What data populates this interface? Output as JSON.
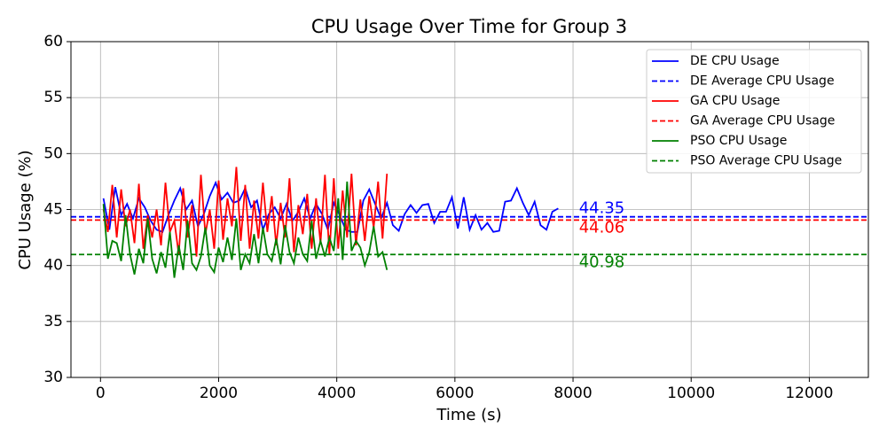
{
  "chart_data": {
    "type": "line",
    "title": "CPU Usage Over Time for Group 3",
    "xlabel": "Time (s)",
    "ylabel": "CPU Usage (%)",
    "xlim": [
      -500,
      13000
    ],
    "ylim": [
      30,
      60
    ],
    "xticks": [
      0,
      2000,
      4000,
      6000,
      8000,
      10000,
      12000
    ],
    "yticks": [
      30,
      35,
      40,
      45,
      50,
      55,
      60
    ],
    "grid": true,
    "legend": "upper right",
    "series": [
      {
        "name": "DE CPU Usage",
        "color": "#0000ff",
        "x": [
          50,
          150,
          250,
          350,
          450,
          550,
          650,
          750,
          850,
          950,
          1050,
          1150,
          1250,
          1350,
          1450,
          1550,
          1650,
          1750,
          1850,
          1950,
          2050,
          2150,
          2250,
          2350,
          2450,
          2550,
          2650,
          2750,
          2850,
          2950,
          3050,
          3150,
          3250,
          3350,
          3450,
          3550,
          3650,
          3750,
          3850,
          3950,
          4050,
          4150,
          4250,
          4350,
          4450,
          4550,
          4650,
          4750,
          4850,
          4950,
          5050,
          5150,
          5250,
          5350,
          5450,
          5550,
          5650,
          5750,
          5850,
          5950,
          6050,
          6150,
          6250,
          6350,
          6450,
          6550,
          6650,
          6750,
          6850,
          6950,
          7050,
          7150,
          7250,
          7350,
          7450,
          7550,
          7650,
          7750
        ],
        "values": [
          46.0,
          43.2,
          47.0,
          44.5,
          45.5,
          44.2,
          46.0,
          45.2,
          44.0,
          43.2,
          43.0,
          44.5,
          45.8,
          46.9,
          45.0,
          45.8,
          43.5,
          44.6,
          46.2,
          47.4,
          45.9,
          46.5,
          45.6,
          45.8,
          46.9,
          45.2,
          45.8,
          43.2,
          44.6,
          45.2,
          44.2,
          45.5,
          44.0,
          44.8,
          46.0,
          44.2,
          45.5,
          44.6,
          43.2,
          45.6,
          44.5,
          43.2,
          43.0,
          43.0,
          45.8,
          46.8,
          45.5,
          44.2,
          45.6,
          43.6,
          43.1,
          44.6,
          45.4,
          44.7,
          45.4,
          45.5,
          43.8,
          44.8,
          44.8,
          46.1,
          43.3,
          46.1,
          43.2,
          44.5,
          43.2,
          43.8,
          43.0,
          43.1,
          45.7,
          45.8,
          46.9,
          45.6,
          44.5,
          45.7,
          43.6,
          43.2,
          44.8,
          45.1
        ]
      },
      {
        "name": "DE Average CPU Usage",
        "color": "#0000ff",
        "dash": true,
        "value": 44.35
      },
      {
        "name": "GA CPU Usage",
        "color": "#ff0000",
        "x": [
          50,
          125,
          200,
          275,
          350,
          425,
          500,
          575,
          650,
          725,
          800,
          875,
          950,
          1025,
          1100,
          1175,
          1250,
          1325,
          1400,
          1475,
          1550,
          1625,
          1700,
          1775,
          1850,
          1925,
          2000,
          2075,
          2150,
          2225,
          2300,
          2375,
          2450,
          2525,
          2600,
          2675,
          2750,
          2825,
          2900,
          2975,
          3050,
          3125,
          3200,
          3275,
          3350,
          3425,
          3500,
          3575,
          3650,
          3725,
          3800,
          3875,
          3950,
          4025,
          4100,
          4175,
          4250,
          4325,
          4400,
          4475,
          4550,
          4625,
          4700,
          4775,
          4850
        ],
        "values": [
          45,
          43,
          47.2,
          42.5,
          46.8,
          43.5,
          45,
          42,
          47.3,
          41.5,
          44.5,
          42.5,
          45,
          41.8,
          47.4,
          43,
          44,
          41,
          46.9,
          42.5,
          45.4,
          40.8,
          48.1,
          42.8,
          45,
          41.5,
          47.6,
          42.3,
          46,
          43.5,
          48.8,
          42.2,
          47.2,
          41.5,
          45.8,
          42.4,
          47.4,
          43,
          46.2,
          41.8,
          45.6,
          42.5,
          47.8,
          41.2,
          45.4,
          42.8,
          46.4,
          41.5,
          46,
          42,
          48.1,
          41,
          47.8,
          41.5,
          46.7,
          42.5,
          48.2,
          41.8,
          45.9,
          42.2,
          46.2,
          43.4,
          47.5,
          42.4,
          48.2
        ]
      },
      {
        "name": "GA Average CPU Usage",
        "color": "#ff0000",
        "dash": true,
        "value": 44.06
      },
      {
        "name": "PSO CPU Usage",
        "color": "#008000",
        "x": [
          50,
          125,
          200,
          275,
          350,
          425,
          500,
          575,
          650,
          725,
          800,
          875,
          950,
          1025,
          1100,
          1175,
          1250,
          1325,
          1400,
          1475,
          1550,
          1625,
          1700,
          1775,
          1850,
          1925,
          2000,
          2075,
          2150,
          2225,
          2300,
          2375,
          2450,
          2525,
          2600,
          2675,
          2750,
          2825,
          2900,
          2975,
          3050,
          3125,
          3200,
          3275,
          3350,
          3425,
          3500,
          3575,
          3650,
          3725,
          3800,
          3875,
          3950,
          4025,
          4100,
          4175,
          4250,
          4325,
          4400,
          4475,
          4550,
          4625,
          4700,
          4775,
          4850
        ],
        "values": [
          45.5,
          40.6,
          42.2,
          42,
          40.4,
          44.5,
          41,
          39.2,
          41.5,
          40.2,
          44.2,
          40.6,
          39.3,
          41.2,
          39.8,
          43,
          38.9,
          41.8,
          39.6,
          44,
          40.2,
          39.6,
          40.8,
          43.4,
          40,
          39.4,
          41.6,
          40.3,
          42.5,
          40.5,
          44.2,
          39.6,
          41,
          40.2,
          42.8,
          40.2,
          43.4,
          41,
          40.4,
          42.4,
          40.1,
          43.6,
          41.2,
          40.2,
          42.5,
          41,
          40.4,
          44,
          40.6,
          42.2,
          40.8,
          42.5,
          41.3,
          46,
          40.5,
          47.5,
          41.3,
          42.2,
          41.6,
          40,
          41.2,
          43.5,
          40.8,
          41.2,
          39.6
        ]
      },
      {
        "name": "PSO Average CPU Usage",
        "color": "#008000",
        "dash": true,
        "value": 40.98
      }
    ]
  }
}
